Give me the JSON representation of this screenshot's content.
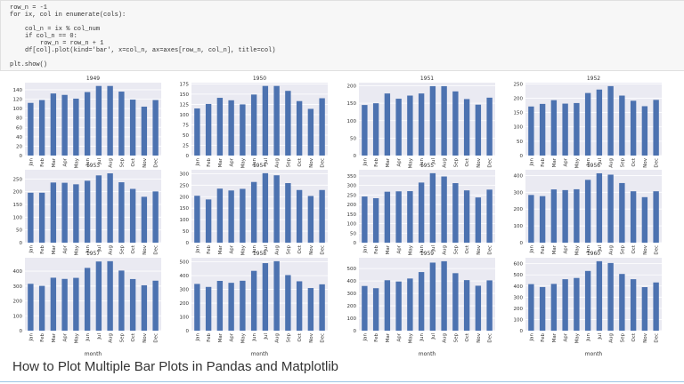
{
  "code": {
    "lines": [
      "row_n = -1",
      "for ix, col in enumerate(cols):",
      "col_n = ix % col_num",
      "if col_n == 0:",
      "row_n = row_n + 1",
      "df[col].plot(kind='bar', x=col_n, ax=axes[row_n, col_n], title=col)",
      "plt.show()"
    ]
  },
  "chart_data": [
    {
      "type": "bar",
      "title": "1949",
      "categories": [
        "Jan",
        "Feb",
        "Mar",
        "Apr",
        "May",
        "Jun",
        "Jul",
        "Aug",
        "Sep",
        "Oct",
        "Nov",
        "Dec"
      ],
      "values": [
        112,
        118,
        132,
        129,
        121,
        135,
        148,
        148,
        136,
        119,
        104,
        118
      ],
      "color": "#4c72b0",
      "ylim": [
        0,
        155
      ],
      "yticks": [
        0,
        20,
        40,
        60,
        80,
        100,
        120,
        140
      ],
      "grid": true
    },
    {
      "type": "bar",
      "title": "1950",
      "categories": [
        "Jan",
        "Feb",
        "Mar",
        "Apr",
        "May",
        "Jun",
        "Jul",
        "Aug",
        "Sep",
        "Oct",
        "Nov",
        "Dec"
      ],
      "values": [
        115,
        126,
        141,
        135,
        125,
        149,
        170,
        170,
        158,
        133,
        114,
        140
      ],
      "color": "#4c72b0",
      "ylim": [
        0,
        178
      ],
      "yticks": [
        0,
        25,
        50,
        75,
        100,
        125,
        150,
        175
      ],
      "grid": true
    },
    {
      "type": "bar",
      "title": "1951",
      "categories": [
        "Jan",
        "Feb",
        "Mar",
        "Apr",
        "May",
        "Jun",
        "Jul",
        "Aug",
        "Sep",
        "Oct",
        "Nov",
        "Dec"
      ],
      "values": [
        145,
        150,
        178,
        163,
        172,
        178,
        199,
        199,
        184,
        162,
        146,
        166
      ],
      "color": "#4c72b0",
      "ylim": [
        0,
        209
      ],
      "yticks": [
        0,
        50,
        100,
        150,
        200
      ],
      "grid": true
    },
    {
      "type": "bar",
      "title": "1952",
      "categories": [
        "Jan",
        "Feb",
        "Mar",
        "Apr",
        "May",
        "Jun",
        "Jul",
        "Aug",
        "Sep",
        "Oct",
        "Nov",
        "Dec"
      ],
      "values": [
        171,
        180,
        193,
        181,
        183,
        218,
        230,
        242,
        209,
        191,
        172,
        194
      ],
      "color": "#4c72b0",
      "ylim": [
        0,
        254
      ],
      "yticks": [
        0,
        50,
        100,
        150,
        200,
        250
      ],
      "grid": true
    },
    {
      "type": "bar",
      "title": "1953",
      "categories": [
        "Jan",
        "Feb",
        "Mar",
        "Apr",
        "May",
        "Jun",
        "Jul",
        "Aug",
        "Sep",
        "Oct",
        "Nov",
        "Dec"
      ],
      "values": [
        196,
        196,
        236,
        235,
        229,
        243,
        264,
        272,
        237,
        211,
        180,
        201
      ],
      "color": "#4c72b0",
      "ylim": [
        0,
        286
      ],
      "yticks": [
        0,
        50,
        100,
        150,
        200,
        250
      ],
      "grid": true
    },
    {
      "type": "bar",
      "title": "1954",
      "categories": [
        "Jan",
        "Feb",
        "Mar",
        "Apr",
        "May",
        "Jun",
        "Jul",
        "Aug",
        "Sep",
        "Oct",
        "Nov",
        "Dec"
      ],
      "values": [
        204,
        188,
        235,
        227,
        234,
        264,
        302,
        293,
        259,
        229,
        203,
        229
      ],
      "color": "#4c72b0",
      "ylim": [
        0,
        317
      ],
      "yticks": [
        0,
        50,
        100,
        150,
        200,
        250,
        300
      ],
      "grid": true
    },
    {
      "type": "bar",
      "title": "1955",
      "categories": [
        "Jan",
        "Feb",
        "Mar",
        "Apr",
        "May",
        "Jun",
        "Jul",
        "Aug",
        "Sep",
        "Oct",
        "Nov",
        "Dec"
      ],
      "values": [
        242,
        233,
        267,
        269,
        270,
        315,
        364,
        347,
        312,
        274,
        237,
        278
      ],
      "color": "#4c72b0",
      "ylim": [
        0,
        382
      ],
      "yticks": [
        0,
        50,
        100,
        150,
        200,
        250,
        300,
        350
      ],
      "grid": true
    },
    {
      "type": "bar",
      "title": "1956",
      "categories": [
        "Jan",
        "Feb",
        "Mar",
        "Apr",
        "May",
        "Jun",
        "Jul",
        "Aug",
        "Sep",
        "Oct",
        "Nov",
        "Dec"
      ],
      "values": [
        284,
        277,
        317,
        313,
        318,
        374,
        413,
        405,
        355,
        306,
        271,
        306
      ],
      "color": "#4c72b0",
      "ylim": [
        0,
        434
      ],
      "yticks": [
        0,
        100,
        200,
        300,
        400
      ],
      "grid": true
    },
    {
      "type": "bar",
      "title": "1957",
      "categories": [
        "Jan",
        "Feb",
        "Mar",
        "Apr",
        "May",
        "Jun",
        "Jul",
        "Aug",
        "Sep",
        "Oct",
        "Nov",
        "Dec"
      ],
      "values": [
        315,
        301,
        356,
        348,
        355,
        422,
        465,
        467,
        404,
        347,
        305,
        336
      ],
      "color": "#4c72b0",
      "ylim": [
        0,
        490
      ],
      "yticks": [
        0,
        100,
        200,
        300,
        400
      ],
      "grid": true,
      "xlabel": "month"
    },
    {
      "type": "bar",
      "title": "1958",
      "categories": [
        "Jan",
        "Feb",
        "Mar",
        "Apr",
        "May",
        "Jun",
        "Jul",
        "Aug",
        "Sep",
        "Oct",
        "Nov",
        "Dec"
      ],
      "values": [
        340,
        318,
        362,
        348,
        363,
        435,
        491,
        505,
        404,
        359,
        310,
        337
      ],
      "color": "#4c72b0",
      "ylim": [
        0,
        530
      ],
      "yticks": [
        0,
        100,
        200,
        300,
        400,
        500
      ],
      "grid": true,
      "xlabel": "month"
    },
    {
      "type": "bar",
      "title": "1959",
      "categories": [
        "Jan",
        "Feb",
        "Mar",
        "Apr",
        "May",
        "Jun",
        "Jul",
        "Aug",
        "Sep",
        "Oct",
        "Nov",
        "Dec"
      ],
      "values": [
        360,
        342,
        406,
        396,
        420,
        472,
        548,
        559,
        463,
        407,
        362,
        405
      ],
      "color": "#4c72b0",
      "ylim": [
        0,
        587
      ],
      "yticks": [
        0,
        100,
        200,
        300,
        400,
        500
      ],
      "grid": true,
      "xlabel": "month"
    },
    {
      "type": "bar",
      "title": "1960",
      "categories": [
        "Jan",
        "Feb",
        "Mar",
        "Apr",
        "May",
        "Jun",
        "Jul",
        "Aug",
        "Sep",
        "Oct",
        "Nov",
        "Dec"
      ],
      "values": [
        417,
        391,
        419,
        461,
        472,
        535,
        622,
        606,
        508,
        461,
        390,
        432
      ],
      "color": "#4c72b0",
      "ylim": [
        0,
        653
      ],
      "yticks": [
        0,
        100,
        200,
        300,
        400,
        500,
        600
      ],
      "grid": true,
      "xlabel": "month"
    }
  ],
  "heading": "How to Plot Multiple Bar Plots in Pandas and Matplotlib"
}
